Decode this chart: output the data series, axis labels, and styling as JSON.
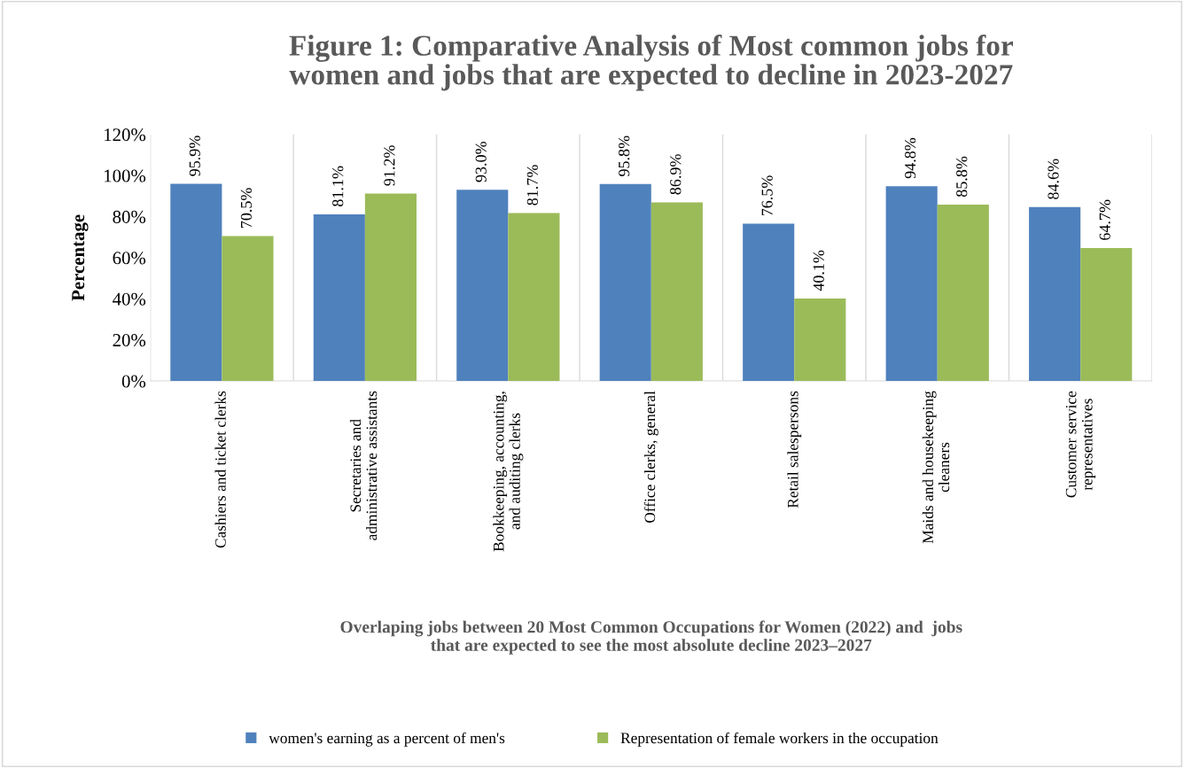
{
  "chart_data": {
    "type": "bar",
    "title": "Figure 1: Comparative Analysis of Most common jobs for\nwomen and jobs that are expected to decline in 2023-2027",
    "xlabel": "Overlaping jobs between 20 Most Common Occupations for Women (2022) and  jobs\nthat are expected to see the most absolute decline 2023–2027",
    "ylabel": "Percentage",
    "categories": [
      "Cashiers and ticket clerks",
      "Secretaries and\nadministrative assistants",
      "Bookkeeping, accounting,\nand auditing clerks",
      "Office clerks, general",
      "Retail salespersons",
      "Maids and housekeeping\ncleaners",
      "Customer service\nrepresentatives"
    ],
    "series": [
      {
        "name": "women's earning as a percent of men's",
        "color": "#4f81bd",
        "values": [
          95.9,
          81.1,
          93.0,
          95.8,
          76.5,
          94.8,
          84.6
        ],
        "value_labels": [
          "95.9%",
          "81.1%",
          "93.0%",
          "95.8%",
          "76.5%",
          "94.8%",
          "84.6%"
        ]
      },
      {
        "name": "Representation of female workers in the occupation",
        "color": "#9bbb59",
        "values": [
          70.5,
          91.2,
          81.7,
          86.9,
          40.1,
          85.8,
          64.7
        ],
        "value_labels": [
          "70.5%",
          "91.2%",
          "81.7%",
          "86.9%",
          "40.1%",
          "85.8%",
          "64.7%"
        ]
      }
    ],
    "ylim": [
      0,
      120
    ],
    "yticks": [
      {
        "value": 0,
        "label": "0%"
      },
      {
        "value": 20,
        "label": "20%"
      },
      {
        "value": 40,
        "label": "40%"
      },
      {
        "value": 60,
        "label": "60%"
      },
      {
        "value": 80,
        "label": "80%"
      },
      {
        "value": 100,
        "label": "100%"
      },
      {
        "value": 120,
        "label": "120%"
      }
    ],
    "grid": "x",
    "legend": "bottom"
  }
}
